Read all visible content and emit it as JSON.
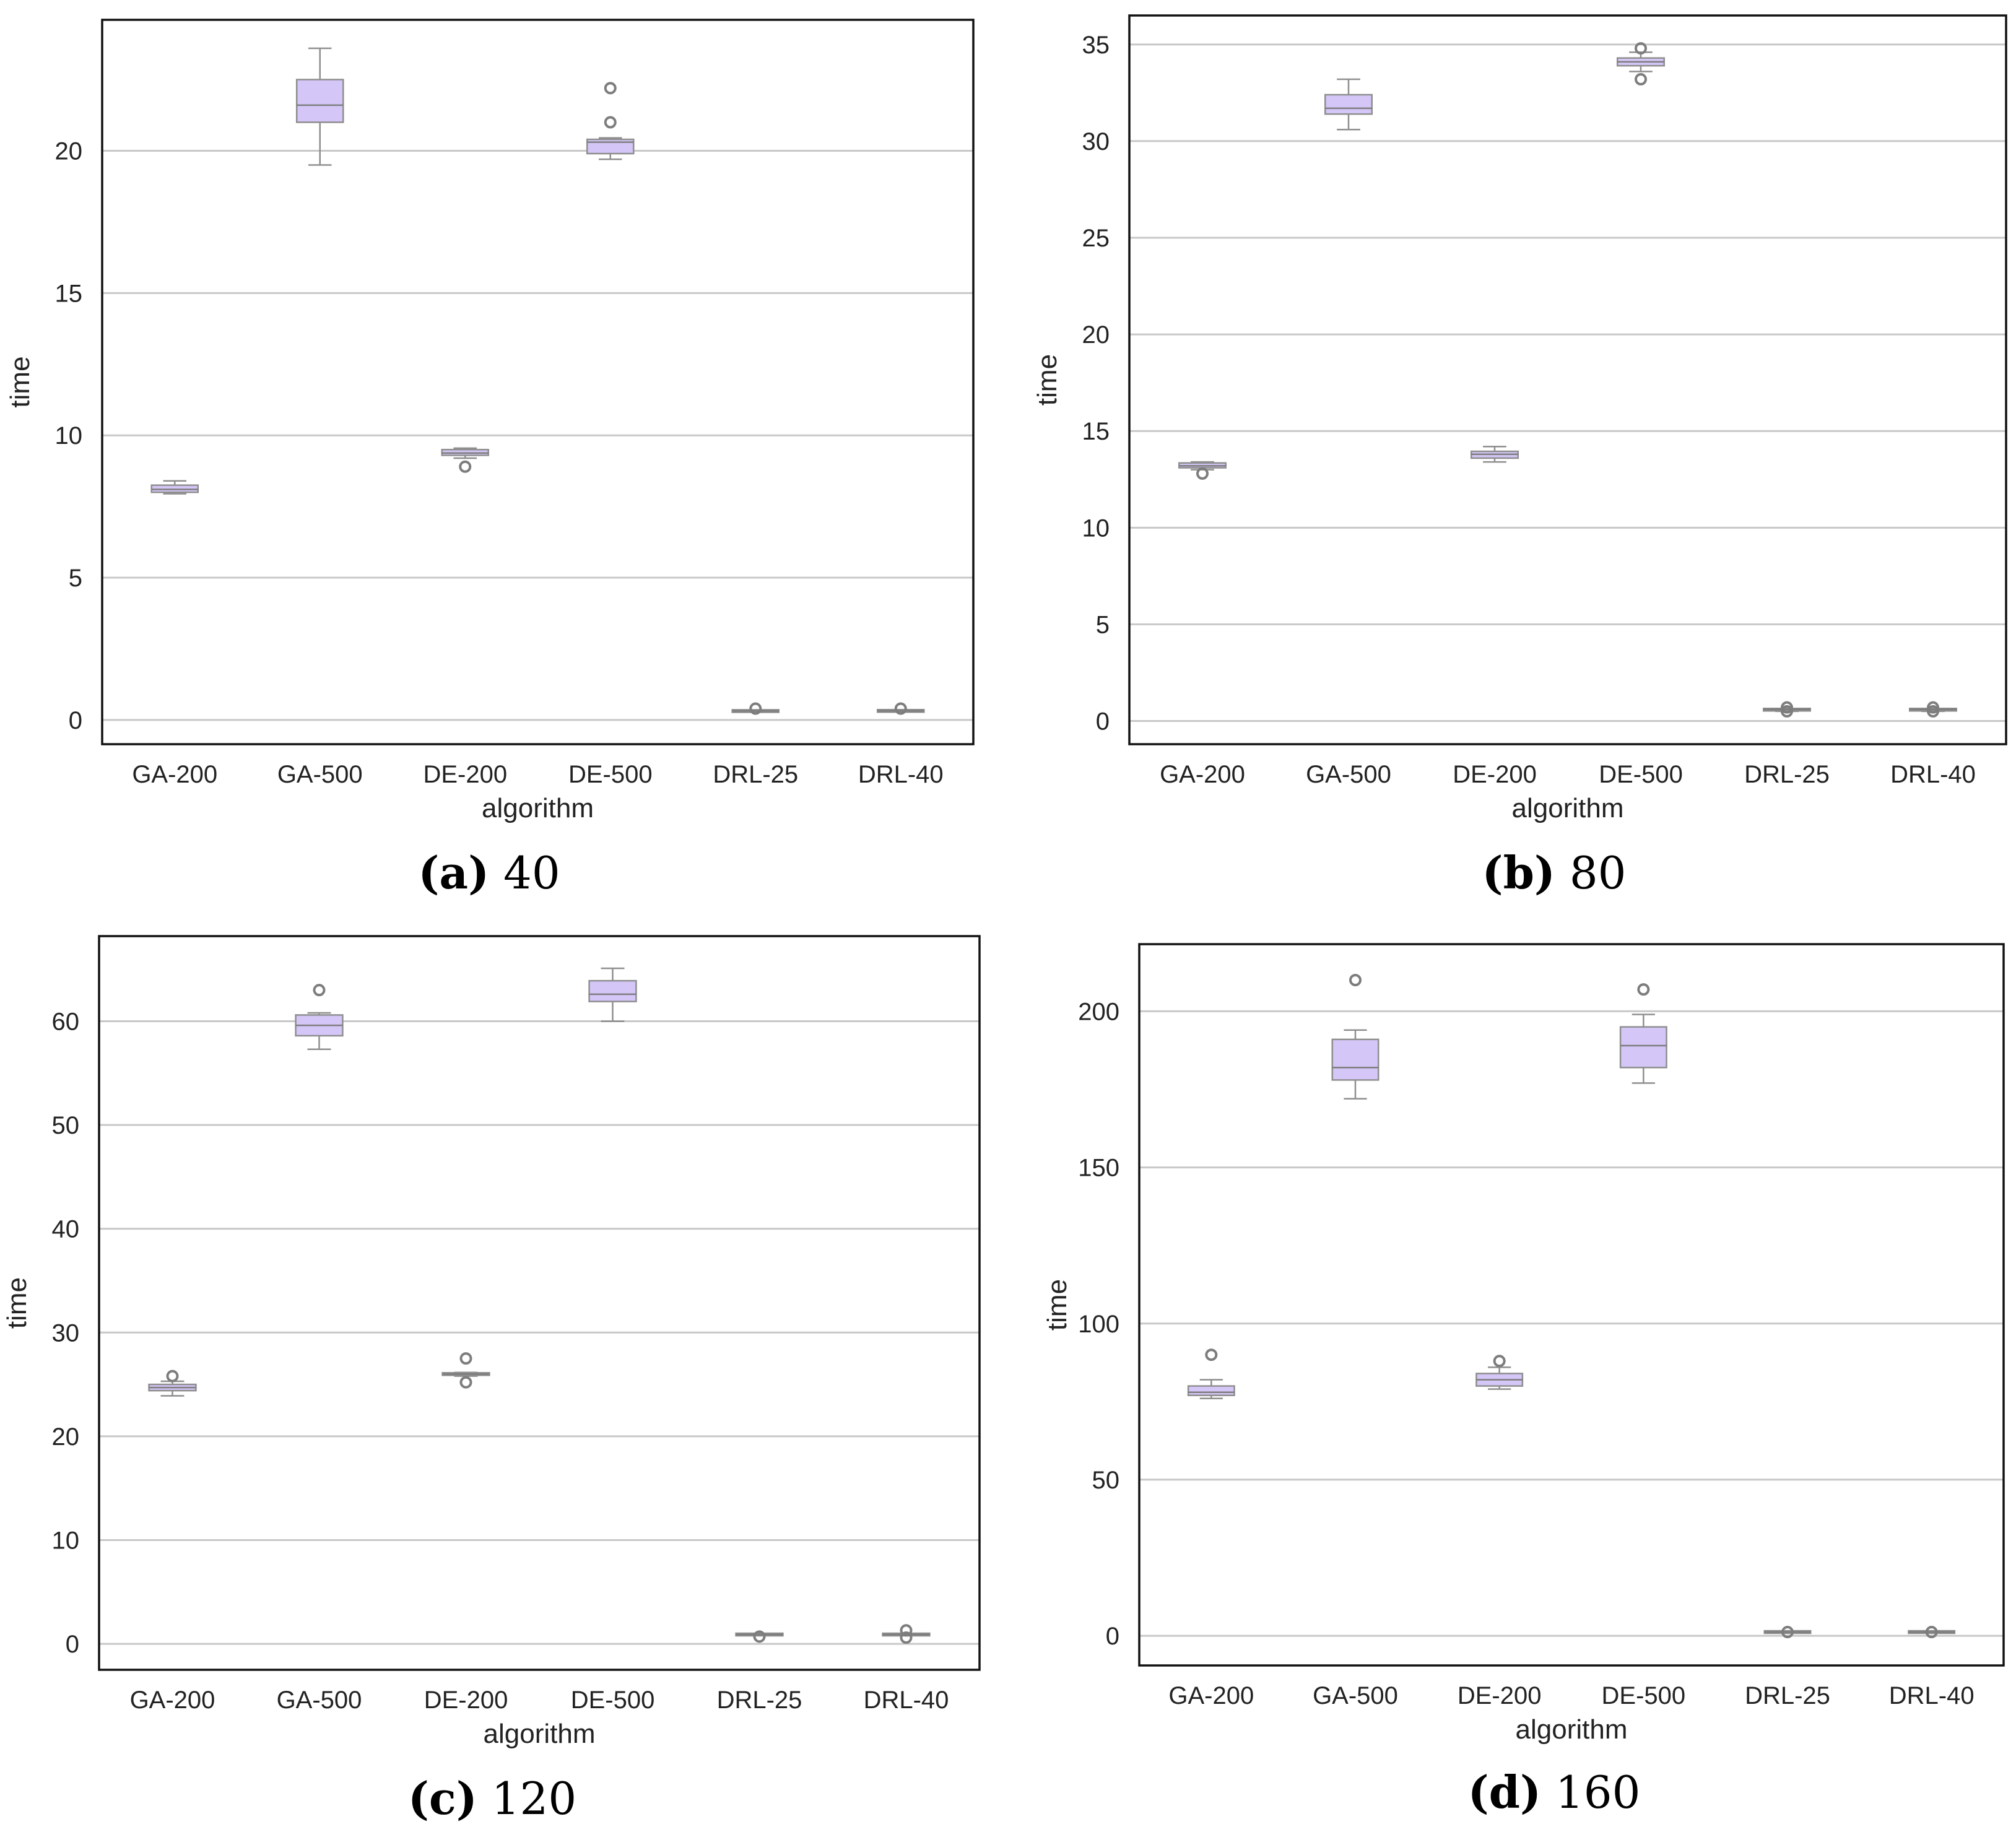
{
  "figure": {
    "subplot_count": 4
  },
  "chart_data": [
    {
      "type": "box",
      "caption_letter": "(a)",
      "caption_value": "40",
      "xlabel": "algorithm",
      "ylabel": "time",
      "ylim": [
        -0.85,
        24.6
      ],
      "yticks": [
        0,
        5,
        10,
        15,
        20
      ],
      "grid": "horizontal",
      "box_color": "#d4c6f7",
      "categories": [
        "GA-200",
        "GA-500",
        "DE-200",
        "DE-500",
        "DRL-25",
        "DRL-40"
      ],
      "boxes": [
        {
          "whislo": 7.95,
          "q1": 8.0,
          "med": 8.1,
          "q3": 8.25,
          "whishi": 8.4,
          "fliers": []
        },
        {
          "whislo": 19.5,
          "q1": 21.0,
          "med": 21.6,
          "q3": 22.5,
          "whishi": 23.6,
          "fliers": []
        },
        {
          "whislo": 9.2,
          "q1": 9.3,
          "med": 9.38,
          "q3": 9.5,
          "whishi": 9.55,
          "fliers": [
            8.9
          ]
        },
        {
          "whislo": 19.7,
          "q1": 19.9,
          "med": 20.3,
          "q3": 20.4,
          "whishi": 20.45,
          "fliers": [
            21.0,
            22.2
          ]
        },
        {
          "whislo": 0.3,
          "q1": 0.3,
          "med": 0.32,
          "q3": 0.33,
          "whishi": 0.34,
          "fliers": [
            0.4
          ]
        },
        {
          "whislo": 0.3,
          "q1": 0.31,
          "med": 0.32,
          "q3": 0.33,
          "whishi": 0.34,
          "fliers": [
            0.4
          ]
        }
      ]
    },
    {
      "type": "box",
      "caption_letter": "(b)",
      "caption_value": "80",
      "xlabel": "algorithm",
      "ylabel": "time",
      "ylim": [
        -1.2,
        36.5
      ],
      "yticks": [
        0,
        5,
        10,
        15,
        20,
        25,
        30,
        35
      ],
      "grid": "horizontal",
      "box_color": "#d4c6f7",
      "categories": [
        "GA-200",
        "GA-500",
        "DE-200",
        "DE-500",
        "DRL-25",
        "DRL-40"
      ],
      "boxes": [
        {
          "whislo": 13.0,
          "q1": 13.1,
          "med": 13.2,
          "q3": 13.35,
          "whishi": 13.4,
          "fliers": [
            12.8
          ]
        },
        {
          "whislo": 30.6,
          "q1": 31.4,
          "med": 31.7,
          "q3": 32.4,
          "whishi": 33.2,
          "fliers": []
        },
        {
          "whislo": 13.4,
          "q1": 13.6,
          "med": 13.8,
          "q3": 13.95,
          "whishi": 14.2,
          "fliers": []
        },
        {
          "whislo": 33.6,
          "q1": 33.9,
          "med": 34.1,
          "q3": 34.3,
          "whishi": 34.6,
          "fliers": [
            33.2,
            34.8
          ]
        },
        {
          "whislo": 0.5,
          "q1": 0.55,
          "med": 0.6,
          "q3": 0.62,
          "whishi": 0.65,
          "fliers": [
            0.5,
            0.7
          ]
        },
        {
          "whislo": 0.5,
          "q1": 0.55,
          "med": 0.6,
          "q3": 0.62,
          "whishi": 0.65,
          "fliers": [
            0.5,
            0.7
          ]
        }
      ]
    },
    {
      "type": "box",
      "caption_letter": "(c)",
      "caption_value": "120",
      "xlabel": "algorithm",
      "ylabel": "time",
      "ylim": [
        -2.5,
        68.2
      ],
      "yticks": [
        0,
        10,
        20,
        30,
        40,
        50,
        60
      ],
      "grid": "horizontal",
      "box_color": "#d4c6f7",
      "categories": [
        "GA-200",
        "GA-500",
        "DE-200",
        "DE-500",
        "DRL-25",
        "DRL-40"
      ],
      "boxes": [
        {
          "whislo": 23.9,
          "q1": 24.4,
          "med": 24.7,
          "q3": 25.0,
          "whishi": 25.3,
          "fliers": [
            25.8
          ]
        },
        {
          "whislo": 57.3,
          "q1": 58.6,
          "med": 59.6,
          "q3": 60.6,
          "whishi": 60.8,
          "fliers": [
            63.0
          ]
        },
        {
          "whislo": 25.8,
          "q1": 25.9,
          "med": 26.0,
          "q3": 26.1,
          "whishi": 26.15,
          "fliers": [
            25.2,
            27.5
          ]
        },
        {
          "whislo": 60.0,
          "q1": 61.9,
          "med": 62.6,
          "q3": 63.9,
          "whishi": 65.1,
          "fliers": []
        },
        {
          "whislo": 0.8,
          "q1": 0.85,
          "med": 0.9,
          "q3": 0.95,
          "whishi": 1.0,
          "fliers": [
            0.7
          ]
        },
        {
          "whislo": 0.8,
          "q1": 0.85,
          "med": 0.9,
          "q3": 0.95,
          "whishi": 1.0,
          "fliers": [
            0.6,
            1.3
          ]
        }
      ]
    },
    {
      "type": "box",
      "caption_letter": "(d)",
      "caption_value": "160",
      "xlabel": "algorithm",
      "ylabel": "time",
      "ylim": [
        -9.5,
        221.5
      ],
      "yticks": [
        0,
        50,
        100,
        150,
        200
      ],
      "grid": "horizontal",
      "box_color": "#d4c6f7",
      "categories": [
        "GA-200",
        "GA-500",
        "DE-200",
        "DE-500",
        "DRL-25",
        "DRL-40"
      ],
      "boxes": [
        {
          "whislo": 76.0,
          "q1": 77.0,
          "med": 78.0,
          "q3": 80.0,
          "whishi": 82.0,
          "fliers": [
            90.0
          ]
        },
        {
          "whislo": 172.0,
          "q1": 178.0,
          "med": 182.0,
          "q3": 191.0,
          "whishi": 194.0,
          "fliers": [
            210.0
          ]
        },
        {
          "whislo": 79.0,
          "q1": 80.0,
          "med": 82.0,
          "q3": 84.0,
          "whishi": 86.0,
          "fliers": [
            88.0
          ]
        },
        {
          "whislo": 177.0,
          "q1": 182.0,
          "med": 189.0,
          "q3": 195.0,
          "whishi": 199.0,
          "fliers": [
            207.0
          ]
        },
        {
          "whislo": 1.0,
          "q1": 1.1,
          "med": 1.2,
          "q3": 1.3,
          "whishi": 1.4,
          "fliers": [
            1.2
          ]
        },
        {
          "whislo": 1.0,
          "q1": 1.1,
          "med": 1.2,
          "q3": 1.3,
          "whishi": 1.4,
          "fliers": [
            1.2
          ]
        }
      ]
    }
  ]
}
